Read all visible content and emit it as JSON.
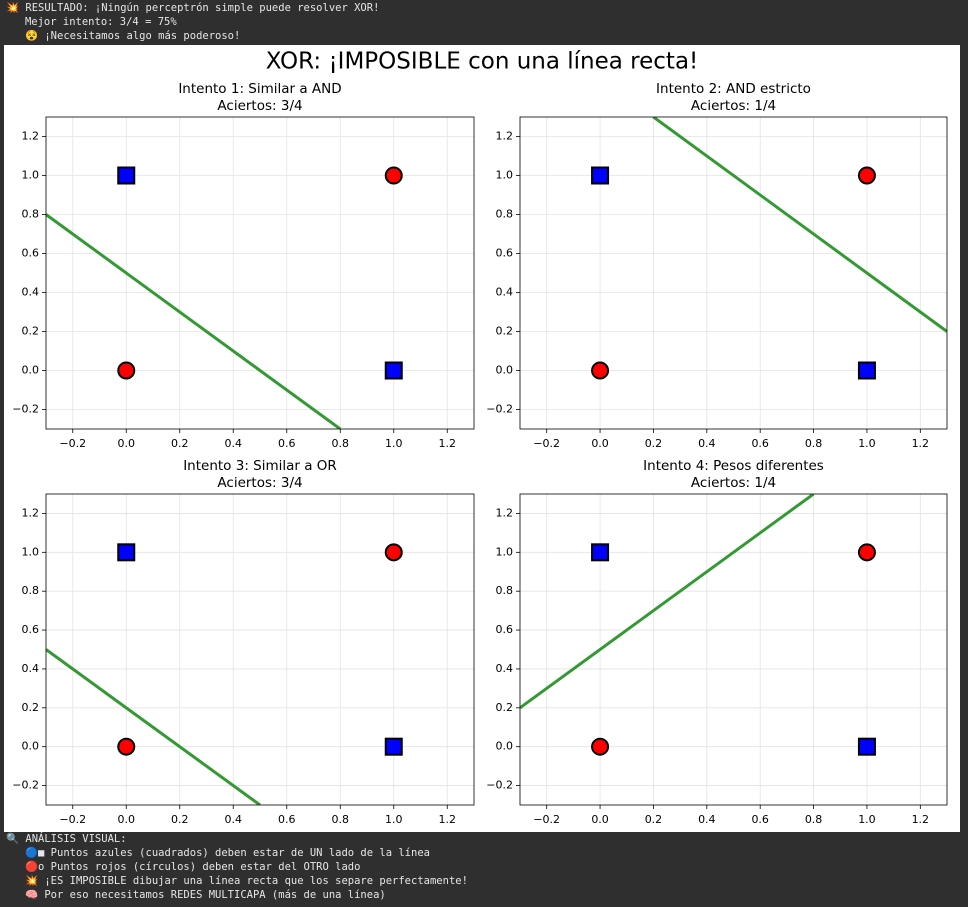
{
  "header": {
    "lines": [
      "💥 RESULTADO: ¡Ningún perceptrón simple puede resolver XOR!",
      "   Mejor intento: 3/4 = 75%",
      "   😵 ¡Necesitamos algo más poderoso!"
    ]
  },
  "figure_title": "XOR: ¡IMPOSIBLE con una línea recta!",
  "chart_data": [
    {
      "type": "scatter",
      "title": "Intento 1: Similar a AND",
      "subtitle": "Aciertos: 3/4",
      "xlim": [
        -0.3,
        1.3
      ],
      "ylim": [
        -0.3,
        1.3
      ],
      "xticks": [
        {
          "value": -0.2,
          "label": "−0.2"
        },
        {
          "value": 0,
          "label": "0.0"
        },
        {
          "value": 0.2,
          "label": "0.2"
        },
        {
          "value": 0.4,
          "label": "0.4"
        },
        {
          "value": 0.6,
          "label": "0.6"
        },
        {
          "value": 0.8,
          "label": "0.8"
        },
        {
          "value": 1,
          "label": "1.0"
        },
        {
          "value": 1.2,
          "label": "1.2"
        }
      ],
      "yticks": [
        {
          "value": -0.2,
          "label": "−0.2"
        },
        {
          "value": 0,
          "label": "0.0"
        },
        {
          "value": 0.2,
          "label": "0.2"
        },
        {
          "value": 0.4,
          "label": "0.4"
        },
        {
          "value": 0.6,
          "label": "0.6"
        },
        {
          "value": 0.8,
          "label": "0.8"
        },
        {
          "value": 1,
          "label": "1.0"
        },
        {
          "value": 1.2,
          "label": "1.2"
        }
      ],
      "grid": true,
      "series": [
        {
          "marker": "line",
          "color": "#339933",
          "x": [
            -0.3,
            0.8
          ],
          "values": [
            0.8,
            -0.3
          ]
        },
        {
          "marker": "square",
          "color": "#0000ff",
          "x": [
            0,
            1
          ],
          "values": [
            1,
            0
          ]
        },
        {
          "marker": "circle",
          "color": "#ff0000",
          "x": [
            0,
            1
          ],
          "values": [
            0,
            1
          ]
        }
      ]
    },
    {
      "type": "scatter",
      "title": "Intento 2: AND estricto",
      "subtitle": "Aciertos: 1/4",
      "xlim": [
        -0.3,
        1.3
      ],
      "ylim": [
        -0.3,
        1.3
      ],
      "xticks": [
        {
          "value": -0.2,
          "label": "−0.2"
        },
        {
          "value": 0,
          "label": "0.0"
        },
        {
          "value": 0.2,
          "label": "0.2"
        },
        {
          "value": 0.4,
          "label": "0.4"
        },
        {
          "value": 0.6,
          "label": "0.6"
        },
        {
          "value": 0.8,
          "label": "0.8"
        },
        {
          "value": 1,
          "label": "1.0"
        },
        {
          "value": 1.2,
          "label": "1.2"
        }
      ],
      "yticks": [
        {
          "value": -0.2,
          "label": "−0.2"
        },
        {
          "value": 0,
          "label": "0.0"
        },
        {
          "value": 0.2,
          "label": "0.2"
        },
        {
          "value": 0.4,
          "label": "0.4"
        },
        {
          "value": 0.6,
          "label": "0.6"
        },
        {
          "value": 0.8,
          "label": "0.8"
        },
        {
          "value": 1,
          "label": "1.0"
        },
        {
          "value": 1.2,
          "label": "1.2"
        }
      ],
      "grid": true,
      "series": [
        {
          "marker": "line",
          "color": "#339933",
          "x": [
            0.2,
            1.3
          ],
          "values": [
            1.3,
            0.2
          ]
        },
        {
          "marker": "square",
          "color": "#0000ff",
          "x": [
            0,
            1
          ],
          "values": [
            1,
            0
          ]
        },
        {
          "marker": "circle",
          "color": "#ff0000",
          "x": [
            0,
            1
          ],
          "values": [
            0,
            1
          ]
        }
      ]
    },
    {
      "type": "scatter",
      "title": "Intento 3: Similar a OR",
      "subtitle": "Aciertos: 3/4",
      "xlim": [
        -0.3,
        1.3
      ],
      "ylim": [
        -0.3,
        1.3
      ],
      "xticks": [
        {
          "value": -0.2,
          "label": "−0.2"
        },
        {
          "value": 0,
          "label": "0.0"
        },
        {
          "value": 0.2,
          "label": "0.2"
        },
        {
          "value": 0.4,
          "label": "0.4"
        },
        {
          "value": 0.6,
          "label": "0.6"
        },
        {
          "value": 0.8,
          "label": "0.8"
        },
        {
          "value": 1,
          "label": "1.0"
        },
        {
          "value": 1.2,
          "label": "1.2"
        }
      ],
      "yticks": [
        {
          "value": -0.2,
          "label": "−0.2"
        },
        {
          "value": 0,
          "label": "0.0"
        },
        {
          "value": 0.2,
          "label": "0.2"
        },
        {
          "value": 0.4,
          "label": "0.4"
        },
        {
          "value": 0.6,
          "label": "0.6"
        },
        {
          "value": 0.8,
          "label": "0.8"
        },
        {
          "value": 1,
          "label": "1.0"
        },
        {
          "value": 1.2,
          "label": "1.2"
        }
      ],
      "grid": true,
      "series": [
        {
          "marker": "line",
          "color": "#339933",
          "x": [
            -0.3,
            0.5
          ],
          "values": [
            0.5,
            -0.3
          ]
        },
        {
          "marker": "square",
          "color": "#0000ff",
          "x": [
            0,
            1
          ],
          "values": [
            1,
            0
          ]
        },
        {
          "marker": "circle",
          "color": "#ff0000",
          "x": [
            0,
            1
          ],
          "values": [
            0,
            1
          ]
        }
      ]
    },
    {
      "type": "scatter",
      "title": "Intento 4: Pesos diferentes",
      "subtitle": "Aciertos: 1/4",
      "xlim": [
        -0.3,
        1.3
      ],
      "ylim": [
        -0.3,
        1.3
      ],
      "xticks": [
        {
          "value": -0.2,
          "label": "−0.2"
        },
        {
          "value": 0,
          "label": "0.0"
        },
        {
          "value": 0.2,
          "label": "0.2"
        },
        {
          "value": 0.4,
          "label": "0.4"
        },
        {
          "value": 0.6,
          "label": "0.6"
        },
        {
          "value": 0.8,
          "label": "0.8"
        },
        {
          "value": 1,
          "label": "1.0"
        },
        {
          "value": 1.2,
          "label": "1.2"
        }
      ],
      "yticks": [
        {
          "value": -0.2,
          "label": "−0.2"
        },
        {
          "value": 0,
          "label": "0.0"
        },
        {
          "value": 0.2,
          "label": "0.2"
        },
        {
          "value": 0.4,
          "label": "0.4"
        },
        {
          "value": 0.6,
          "label": "0.6"
        },
        {
          "value": 0.8,
          "label": "0.8"
        },
        {
          "value": 1,
          "label": "1.0"
        },
        {
          "value": 1.2,
          "label": "1.2"
        }
      ],
      "grid": true,
      "series": [
        {
          "marker": "line",
          "color": "#339933",
          "x": [
            -0.3,
            0.8
          ],
          "values": [
            0.2,
            1.3
          ]
        },
        {
          "marker": "square",
          "color": "#0000ff",
          "x": [
            0,
            1
          ],
          "values": [
            1,
            0
          ]
        },
        {
          "marker": "circle",
          "color": "#ff0000",
          "x": [
            0,
            1
          ],
          "values": [
            0,
            1
          ]
        }
      ]
    }
  ],
  "footer": {
    "lines": [
      "🔍 ANÁLISIS VISUAL:",
      "   🔵■ Puntos azules (cuadrados) deben estar de UN lado de la línea",
      "   🔴o Puntos rojos (círculos) deben estar del OTRO lado",
      "   💥 ¡ES IMPOSIBLE dibujar una línea recta que los separe perfectamente!",
      "   🧠 Por eso necesitamos REDES MULTICAPA (más de una línea)"
    ]
  }
}
